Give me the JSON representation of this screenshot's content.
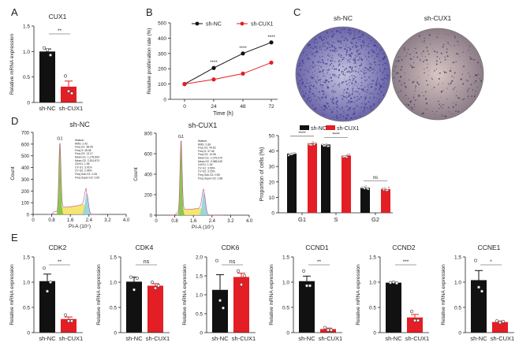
{
  "colors": {
    "sh_nc": "#111111",
    "sh_cux1": "#e31e24"
  },
  "panel_labels": {
    "a": "A",
    "b": "B",
    "c": "C",
    "d": "D",
    "e": "E"
  },
  "common": {
    "ylabel_mrna": "Relative mRNA expression",
    "group_nc": "sh-NC",
    "group_cux1": "sh-CUX1"
  },
  "chart_data": [
    {
      "id": "A",
      "type": "bar",
      "title": "CUX1",
      "ylabel": "Relative mRNA expression",
      "ylim": [
        0,
        1.5
      ],
      "yticks": [
        "0",
        "0.5",
        "1.0",
        "1.5"
      ],
      "ytick_values": [
        0,
        0.5,
        1.0,
        1.5
      ],
      "categories": [
        "sh-NC",
        "sh-CUX1"
      ],
      "means": [
        1.0,
        0.31
      ],
      "errors": [
        0.05,
        0.11
      ],
      "points": [
        [
          1.07,
          1.03,
          0.93
        ],
        [
          0.52,
          0.22,
          0.18
        ]
      ],
      "significance": "**"
    },
    {
      "id": "B",
      "type": "line",
      "xlabel": "Time (h)",
      "ylabel": "Relative proliferation rate (%)",
      "ylim": [
        0,
        500
      ],
      "yticks": [
        "0",
        "100",
        "200",
        "300",
        "400",
        "500"
      ],
      "ytick_values": [
        0,
        100,
        200,
        300,
        400,
        500
      ],
      "x": [
        0,
        24,
        48,
        72
      ],
      "xticks": [
        "0",
        "24",
        "48",
        "72"
      ],
      "series": [
        {
          "name": "sh-NC",
          "values": [
            100,
            205,
            300,
            372
          ]
        },
        {
          "name": "sh-CUX1",
          "values": [
            100,
            130,
            168,
            240
          ]
        }
      ],
      "significance": [
        "",
        "****",
        "****",
        "****"
      ],
      "legend": "top"
    },
    {
      "id": "D-hist-NC",
      "type": "area",
      "title": "sh-NC",
      "xlabel": "PI-A (10⁷)",
      "ylabel": "Count",
      "xlim": [
        0,
        4.0
      ],
      "xticks": [
        "0",
        "0.8",
        "1.6",
        "2.4",
        "3.2",
        "4.0"
      ],
      "ylim": [
        0,
        700
      ],
      "yticks": [
        "0",
        "100",
        "200",
        "300",
        "400",
        "500",
        "600",
        "700"
      ],
      "ytick_values": [
        0,
        100,
        200,
        300,
        400,
        500,
        600,
        700
      ],
      "peak_label": "G1",
      "g1_peak": {
        "x": 1.15,
        "count": 615
      },
      "g2_peak": {
        "x": 2.3,
        "count": 220
      },
      "s_level": [
        60,
        95
      ],
      "stats": [
        "Watson",
        "RMS: 2.42",
        "Freq G1: 38.05",
        "Freq S: 45.48",
        "Freq G2: 13.17",
        "Mean G1: 1,175,604",
        "Mean G2: 2,301,873",
        "G2/G1: 1.96",
        "CV G1: 3.01%",
        "CV G2: 2.06%",
        "Freq Sub-G1: 0.35",
        "Freq Super-G2: 0.60"
      ]
    },
    {
      "id": "D-hist-CUX1",
      "type": "area",
      "title": "sh-CUX1",
      "xlabel": "PI-A (10⁷)",
      "ylabel": "Count",
      "xlim": [
        0,
        4.0
      ],
      "xticks": [
        "0",
        "0.8",
        "1.6",
        "2.4",
        "3.2",
        "4.0"
      ],
      "ylim": [
        0,
        800
      ],
      "yticks": [
        "0",
        "200",
        "400",
        "600",
        "800"
      ],
      "ytick_values": [
        0,
        200,
        400,
        600,
        800
      ],
      "peak_label": "G1",
      "g1_peak": {
        "x": 1.07,
        "count": 730
      },
      "g2_peak": {
        "x": 2.05,
        "count": 255
      },
      "s_level": [
        55,
        75
      ],
      "stats": [
        "Watson",
        "RMS: 2.68",
        "Freq G1: 44.62",
        "Freq S: 37.48",
        "Freq G2: 14.96",
        "Mean G1: 1,079,070",
        "Mean G2: 2,088,049",
        "G2/G1: 1.94",
        "CV G1: 3.50%",
        "CV G2: 3.15%",
        "Freq Sub-G1: 0.50",
        "Freq Super-G2: 1.88"
      ]
    },
    {
      "id": "D-bar",
      "type": "bar",
      "ylabel": "Proportion of cells (%)",
      "ylim": [
        0,
        50
      ],
      "yticks": [
        "0",
        "10",
        "20",
        "30",
        "40",
        "50"
      ],
      "ytick_values": [
        0,
        10,
        20,
        30,
        40,
        50
      ],
      "categories": [
        "G1",
        "S",
        "G2"
      ],
      "series": [
        {
          "name": "sh-NC",
          "values": [
            38.3,
            44.2,
            16.2
          ],
          "errors": [
            0.6,
            0.7,
            0.5
          ]
        },
        {
          "name": "sh-CUX1",
          "values": [
            45.0,
            37.0,
            15.3
          ],
          "errors": [
            0.4,
            0.5,
            0.5
          ]
        }
      ],
      "significance": [
        "****",
        "****",
        "ns"
      ],
      "legend": "top"
    },
    {
      "id": "E1",
      "type": "bar",
      "title": "CDK2",
      "ylabel": "Relative mRNA expression",
      "ylim": [
        0,
        1.5
      ],
      "yticks": [
        "0",
        "0.5",
        "1.0",
        "1.5"
      ],
      "ytick_values": [
        0,
        0.5,
        1.0,
        1.5
      ],
      "categories": [
        "sh-NC",
        "sh-CUX1"
      ],
      "means": [
        1.02,
        0.27
      ],
      "errors": [
        0.14,
        0.04
      ],
      "points": [
        [
          1.28,
          0.82,
          1.0
        ],
        [
          0.35,
          0.23,
          0.23
        ]
      ],
      "significance": "**"
    },
    {
      "id": "E2",
      "type": "bar",
      "title": "CDK4",
      "ylabel": "Relative mRNA expression",
      "ylim": [
        0,
        1.5
      ],
      "yticks": [
        "0",
        "0.5",
        "1.0",
        "1.5"
      ],
      "ytick_values": [
        0,
        0.5,
        1.0,
        1.5
      ],
      "categories": [
        "sh-NC",
        "sh-CUX1"
      ],
      "means": [
        1.01,
        0.93
      ],
      "errors": [
        0.09,
        0.04
      ],
      "points": [
        [
          1.1,
          0.85,
          1.08
        ],
        [
          1.0,
          0.88,
          0.93
        ]
      ],
      "significance": "ns"
    },
    {
      "id": "E3",
      "type": "bar",
      "title": "CDK6",
      "ylabel": "Relative mRNA expression",
      "ylim": [
        0,
        2.0
      ],
      "yticks": [
        "0",
        "0.5",
        "1.0",
        "1.5",
        "2.0"
      ],
      "ytick_values": [
        0,
        0.5,
        1.0,
        1.5,
        2.0
      ],
      "categories": [
        "sh-NC",
        "sh-CUX1"
      ],
      "means": [
        1.13,
        1.47
      ],
      "errors": [
        0.4,
        0.1
      ],
      "points": [
        [
          1.9,
          0.85,
          0.65
        ],
        [
          1.63,
          1.27,
          1.5
        ]
      ],
      "significance": "ns"
    },
    {
      "id": "E4",
      "type": "bar",
      "title": "CCND1",
      "ylabel": "Relative mRNA expression",
      "ylim": [
        0,
        1.5
      ],
      "yticks": [
        "0",
        "0.5",
        "1.0",
        "1.5"
      ],
      "ytick_values": [
        0,
        0.5,
        1.0,
        1.5
      ],
      "categories": [
        "sh-NC",
        "sh-CUX1"
      ],
      "means": [
        1.02,
        0.07
      ],
      "errors": [
        0.1,
        0.02
      ],
      "points": [
        [
          1.22,
          0.93,
          0.93
        ],
        [
          0.1,
          0.05,
          0.05
        ]
      ],
      "significance": "**"
    },
    {
      "id": "E5",
      "type": "bar",
      "title": "CCND2",
      "ylabel": "Relative mRNA expression",
      "ylim": [
        0,
        1.5
      ],
      "yticks": [
        "0",
        "0.5",
        "1.0",
        "1.5"
      ],
      "ytick_values": [
        0,
        0.5,
        1.0,
        1.5
      ],
      "categories": [
        "sh-NC",
        "sh-CUX1"
      ],
      "means": [
        0.99,
        0.3
      ],
      "errors": [
        0.01,
        0.06
      ],
      "points": [
        [
          0.99,
          1.0,
          0.98
        ],
        [
          0.42,
          0.24,
          0.24
        ]
      ],
      "significance": "***"
    },
    {
      "id": "E6",
      "type": "bar",
      "title": "CCNE1",
      "ylabel": "Relative mRNA expression",
      "ylim": [
        0,
        1.5
      ],
      "yticks": [
        "0",
        "0.5",
        "1.0",
        "1.5"
      ],
      "ytick_values": [
        0,
        0.5,
        1.0,
        1.5
      ],
      "categories": [
        "sh-NC",
        "sh-CUX1"
      ],
      "means": [
        1.04,
        0.21
      ],
      "errors": [
        0.19,
        0.02
      ],
      "points": [
        [
          1.43,
          0.9,
          0.82
        ],
        [
          0.23,
          0.2,
          0.22
        ]
      ],
      "significance": "*"
    }
  ],
  "panel_c": {
    "labels": [
      "sh-NC",
      "sh-CUX1"
    ]
  }
}
